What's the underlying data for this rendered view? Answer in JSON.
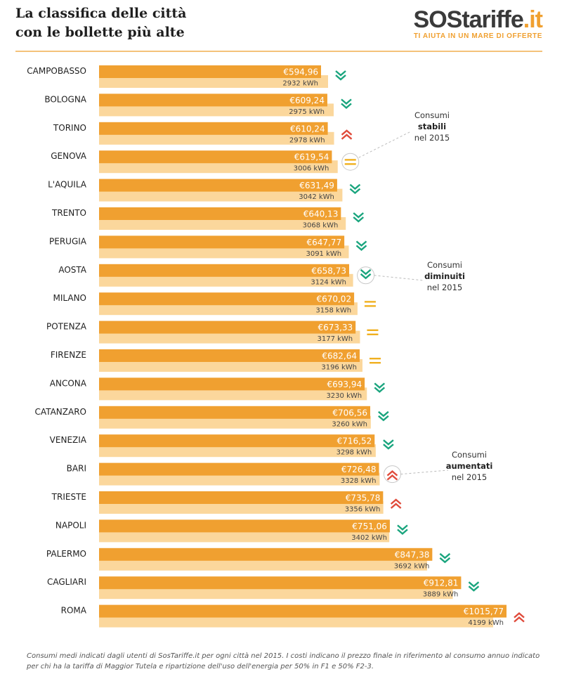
{
  "header": {
    "title_line1": "La classifica delle città",
    "title_line2": "con le bollette più alte"
  },
  "logo": {
    "brand": "SOStariffe",
    "suffix": ".it",
    "tagline": "TI AIUTA IN UN MARE DI OFFERTE"
  },
  "colors": {
    "bill_bar": "#f0a030",
    "kwh_bar": "#fbd79c",
    "down": "#1aa57e",
    "up": "#e04c3c",
    "stable": "#f0b020"
  },
  "chart_data": {
    "type": "bar",
    "orientation": "horizontal",
    "categories": [
      "CAMPOBASSO",
      "BOLOGNA",
      "TORINO",
      "GENOVA",
      "L'AQUILA",
      "TRENTO",
      "PERUGIA",
      "AOSTA",
      "MILANO",
      "POTENZA",
      "FIRENZE",
      "ANCONA",
      "CATANZARO",
      "VENEZIA",
      "BARI",
      "TRIESTE",
      "NAPOLI",
      "PALERMO",
      "CAGLIARI",
      "ROMA"
    ],
    "series": [
      {
        "values": [
          594.96,
          609.24,
          610.24,
          619.54,
          631.49,
          640.13,
          647.77,
          658.73,
          670.02,
          673.33,
          682.64,
          693.94,
          706.56,
          716.52,
          726.48,
          735.78,
          751.06,
          847.38,
          912.81,
          1015.77
        ]
      },
      {
        "values": [
          2932,
          2975,
          2978,
          3006,
          3042,
          3068,
          3091,
          3124,
          3158,
          3177,
          3196,
          3230,
          3260,
          3298,
          3328,
          3356,
          3402,
          3692,
          3889,
          4199
        ]
      }
    ],
    "bill_labels": [
      "€594,96",
      "€609,24",
      "€610,24",
      "€619,54",
      "€631,49",
      "€640,13",
      "€647,77",
      "€658,73",
      "€670,02",
      "€673,33",
      "€682,64",
      "€693,94",
      "€706,56",
      "€716,52",
      "€726,48",
      "€735,78",
      "€751,06",
      "€847,38",
      "€912,81",
      "€1015,77"
    ],
    "kwh_labels": [
      "2932 kWh",
      "2975 kWh",
      "2978 kWh",
      "3006 kWh",
      "3042 kWh",
      "3068 kWh",
      "3091 kWh",
      "3124 kWh",
      "3158 kWh",
      "3177 kWh",
      "3196 kWh",
      "3230 kWh",
      "3260 kWh",
      "3298 kWh",
      "3328 kWh",
      "3356 kWh",
      "3402 kWh",
      "3692 kWh",
      "3889 kWh",
      "4199 kWh"
    ],
    "trend": [
      "down",
      "down",
      "up",
      "stable",
      "down",
      "down",
      "down",
      "down",
      "stable",
      "stable",
      "stable",
      "down",
      "down",
      "down",
      "up",
      "up",
      "down",
      "down",
      "down",
      "up"
    ],
    "legend": [
      {
        "row": 3,
        "trend": "stable",
        "l1": "Consumi",
        "l2": "stabili",
        "l3": "nel 2015"
      },
      {
        "row": 7,
        "trend": "down",
        "l1": "Consumi",
        "l2": "diminuiti",
        "l3": "nel 2015"
      },
      {
        "row": 14,
        "trend": "up",
        "l1": "Consumi",
        "l2": "aumentati",
        "l3": "nel 2015"
      }
    ]
  },
  "footer": {
    "note": "Consumi medi indicati dagli utenti di SosTariffe.it per ogni città nel 2015. I costi indicano il prezzo finale in riferimento al consumo annuo indicato per chi ha la tariffa di Maggior Tutela e ripartizione dell'uso dell'energia per 50% in F1 e 50% F2-3."
  }
}
